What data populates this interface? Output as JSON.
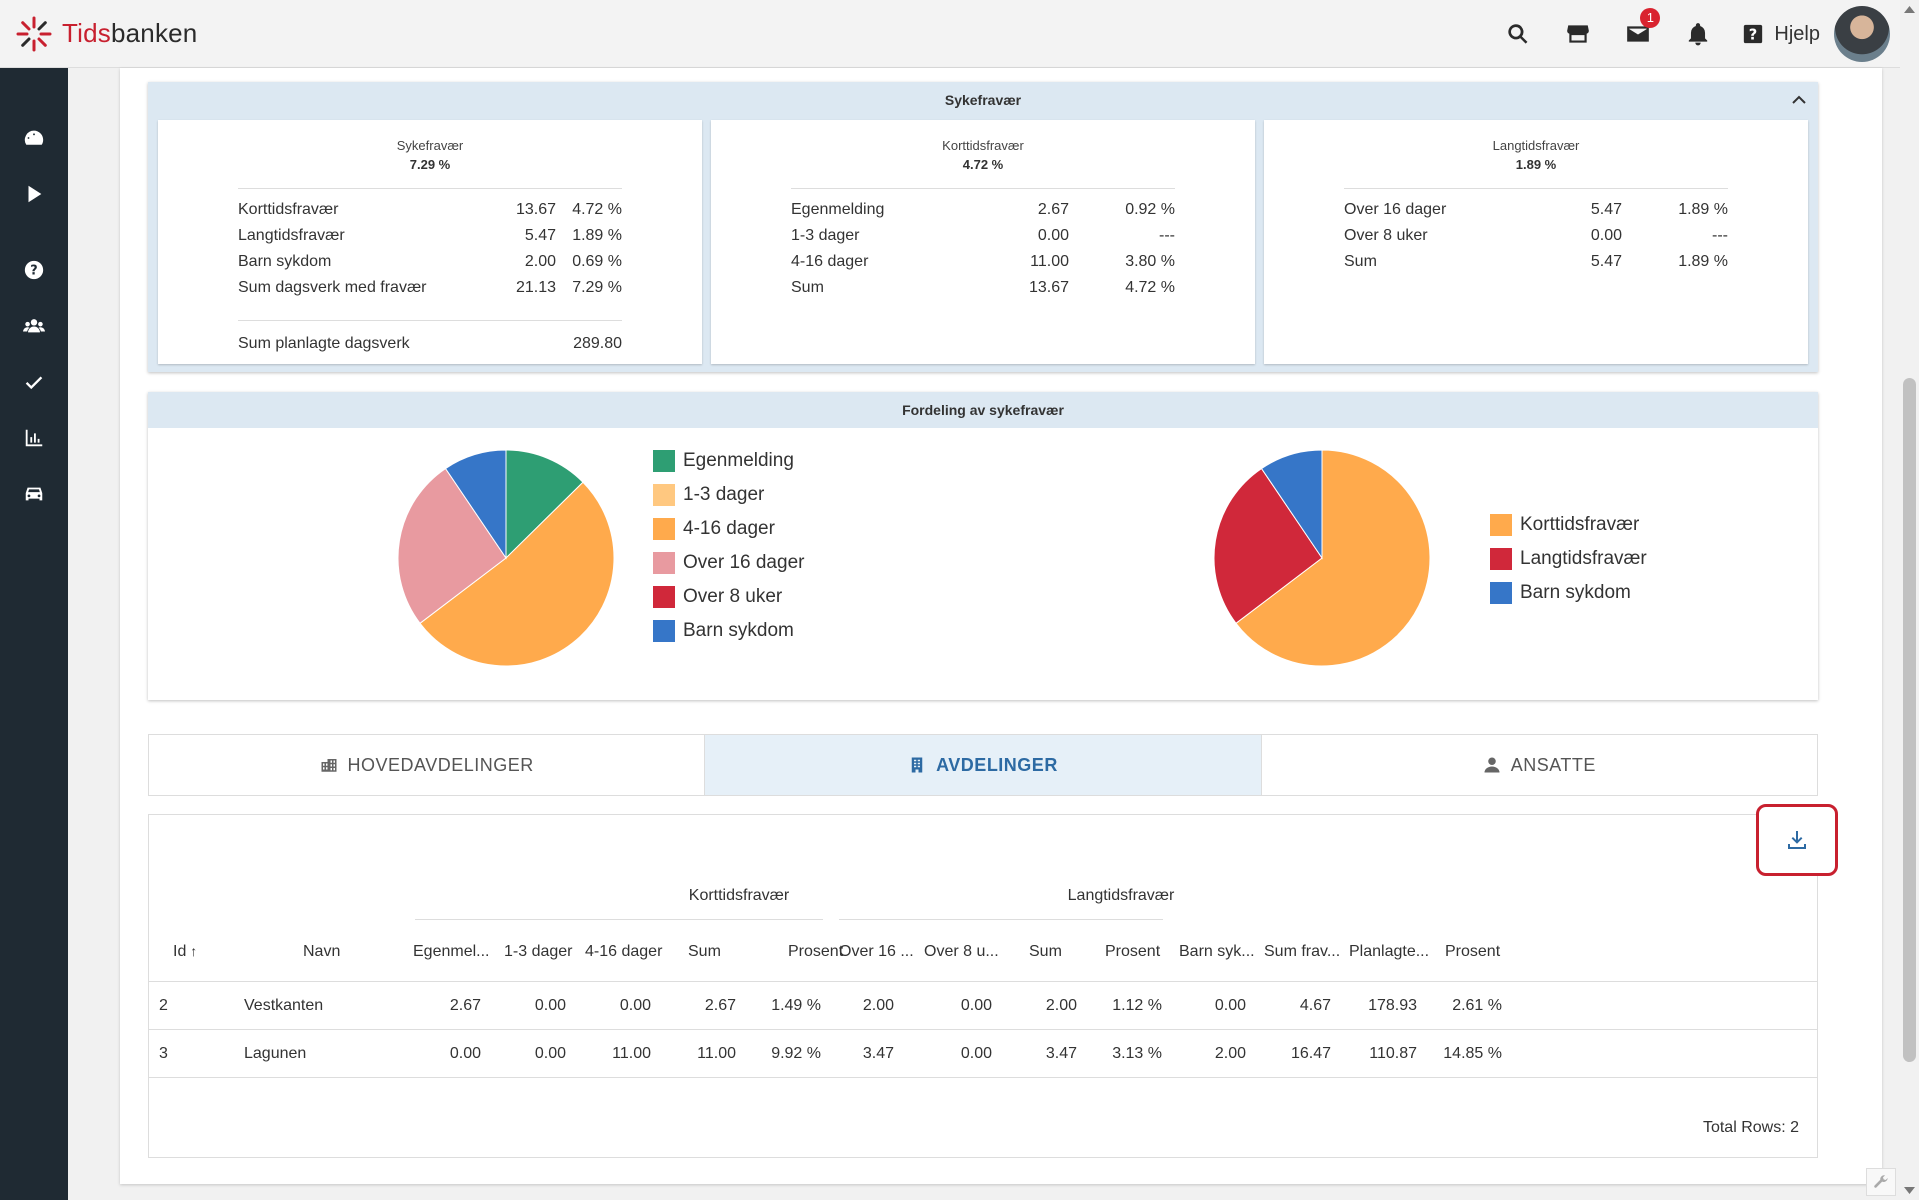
{
  "app": {
    "logo_part1": "Tids",
    "logo_part2": "banken",
    "help_label": "Hjelp",
    "mail_badge": "1"
  },
  "sykefravaer": {
    "header": "Sykefravær",
    "cards": [
      {
        "title": "Sykefravær",
        "value": "7.29 %",
        "rows": [
          {
            "label": "Korttidsfravær",
            "v1": "13.67",
            "v2": "4.72 %"
          },
          {
            "label": "Langtidsfravær",
            "v1": "5.47",
            "v2": "1.89 %"
          },
          {
            "label": "Barn sykdom",
            "v1": "2.00",
            "v2": "0.69 %"
          },
          {
            "label": "Sum dagsverk med fravær",
            "v1": "21.13",
            "v2": "7.29 %"
          }
        ],
        "sum": {
          "label": "Sum planlagte dagsverk",
          "v1": "289.80"
        }
      },
      {
        "title": "Korttidsfravær",
        "value": "4.72 %",
        "rows": [
          {
            "label": "Egenmelding",
            "v1": "2.67",
            "v2": "0.92 %"
          },
          {
            "label": "1-3 dager",
            "v1": "0.00",
            "v2": "---"
          },
          {
            "label": "4-16 dager",
            "v1": "11.00",
            "v2": "3.80 %"
          },
          {
            "label": "Sum",
            "v1": "13.67",
            "v2": "4.72 %"
          }
        ]
      },
      {
        "title": "Langtidsfravær",
        "value": "1.89 %",
        "rows": [
          {
            "label": "Over 16 dager",
            "v1": "5.47",
            "v2": "1.89 %"
          },
          {
            "label": "Over 8 uker",
            "v1": "0.00",
            "v2": "---"
          },
          {
            "label": "Sum",
            "v1": "5.47",
            "v2": "1.89 %"
          }
        ]
      }
    ]
  },
  "fordeling": {
    "header": "Fordeling av sykefravær"
  },
  "chart_data": [
    {
      "type": "pie",
      "labels": [
        "Egenmelding",
        "1-3 dager",
        "4-16 dager",
        "Over 16 dager",
        "Over 8 uker",
        "Barn sykdom"
      ],
      "values": [
        2.67,
        0.0,
        11.0,
        5.47,
        0.0,
        2.0
      ],
      "colors": [
        "#2e9e73",
        "#ffc880",
        "#ffaa4c",
        "#e89aa0",
        "#d0283a",
        "#3676c8"
      ],
      "legend": "right"
    },
    {
      "type": "pie",
      "labels": [
        "Korttidsfravær",
        "Langtidsfravær",
        "Barn sykdom"
      ],
      "values": [
        13.67,
        5.47,
        2.0
      ],
      "colors": [
        "#ffaa4c",
        "#d0283a",
        "#3676c8"
      ],
      "legend": "right"
    }
  ],
  "tabs": [
    {
      "label": "HOVEDAVDELINGER",
      "icon": "building-icon"
    },
    {
      "label": "AVDELINGER",
      "icon": "building-small-icon"
    },
    {
      "label": "ANSATTE",
      "icon": "user-icon"
    }
  ],
  "table": {
    "group_kort": "Korttidsfravær",
    "group_lang": "Langtidsfravær",
    "columns": [
      "Id",
      "Navn",
      "Egenmel...",
      "1-3 dager",
      "4-16 dager",
      "Sum",
      "Prosent",
      "Over 16 ...",
      "Over 8 u...",
      "Sum",
      "Prosent",
      "Barn syk...",
      "Sum frav...",
      "Planlagte...",
      "Prosent"
    ],
    "rows": [
      [
        "2",
        "Vestkanten",
        "2.67",
        "0.00",
        "0.00",
        "2.67",
        "1.49 %",
        "2.00",
        "0.00",
        "2.00",
        "1.12 %",
        "0.00",
        "4.67",
        "178.93",
        "2.61 %"
      ],
      [
        "3",
        "Lagunen",
        "0.00",
        "0.00",
        "11.00",
        "11.00",
        "9.92 %",
        "3.47",
        "0.00",
        "3.47",
        "3.13 %",
        "2.00",
        "16.47",
        "110.87",
        "14.85 %"
      ]
    ],
    "total": "Total Rows: 2"
  }
}
